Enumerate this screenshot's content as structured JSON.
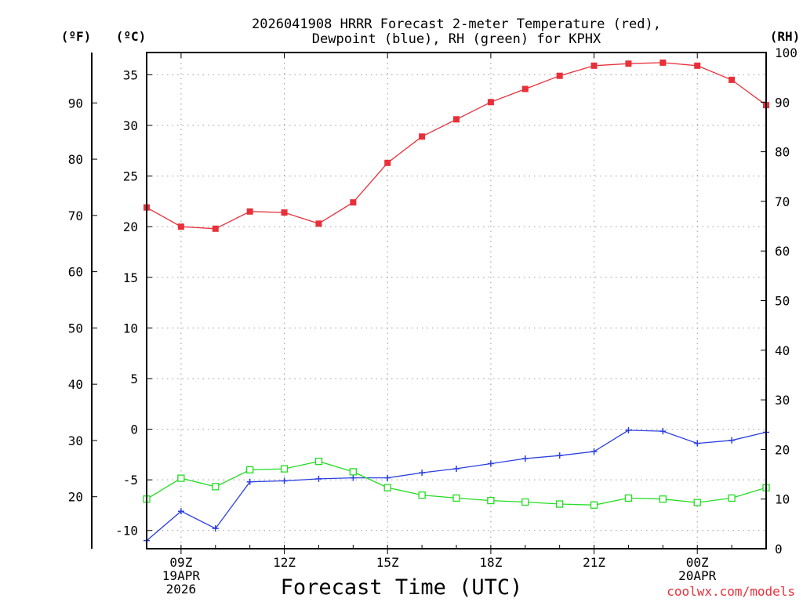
{
  "colors": {
    "temperature": "#e8303a",
    "dewpoint": "#2b3fe0",
    "rh": "#22dd22",
    "grid": "#999999",
    "credit": "#e8303a"
  },
  "chart_data": {
    "type": "line",
    "title": [
      "2026041908 HRRR Forecast 2-meter Temperature (red),",
      "Dewpoint (blue), RH (green) for KPHX"
    ],
    "xlabel": "Forecast Time (UTC)",
    "credit": "coolwx.com/models",
    "unit_labels": {
      "fahrenheit": "(ºF)",
      "celsius": "(ºC)",
      "rh": "(RH)"
    },
    "x_hours_from_08z": [
      0,
      1,
      2,
      3,
      4,
      5,
      6,
      7,
      8,
      9,
      10,
      11,
      12,
      13,
      14,
      15,
      16,
      17,
      18
    ],
    "x_range": [
      0,
      18
    ],
    "x_ticks": [
      {
        "hour": 1,
        "lines": [
          "09Z",
          "19APR",
          "2026"
        ]
      },
      {
        "hour": 4,
        "lines": [
          "12Z"
        ]
      },
      {
        "hour": 7,
        "lines": [
          "15Z"
        ]
      },
      {
        "hour": 10,
        "lines": [
          "18Z"
        ]
      },
      {
        "hour": 13,
        "lines": [
          "21Z"
        ]
      },
      {
        "hour": 16,
        "lines": [
          "00Z",
          "20APR"
        ]
      }
    ],
    "y_celsius_range": [
      -11.8,
      37.2
    ],
    "y_celsius_ticks": [
      35,
      30,
      25,
      20,
      15,
      10,
      5,
      0,
      -5,
      -10
    ],
    "y_fahrenheit_ticks": [
      90,
      80,
      70,
      60,
      50,
      40,
      30,
      20
    ],
    "y_rh_range": [
      0,
      100
    ],
    "y_rh_ticks": [
      100,
      90,
      80,
      70,
      60,
      50,
      40,
      30,
      20,
      10,
      0
    ],
    "series": [
      {
        "name": "Temperature",
        "axis": "celsius",
        "marker": "filled-square",
        "values": [
          21.9,
          20.0,
          19.8,
          21.5,
          21.4,
          20.3,
          22.4,
          26.3,
          28.9,
          30.6,
          32.3,
          33.6,
          34.9,
          35.9,
          36.1,
          36.2,
          35.9,
          34.5,
          32.0
        ]
      },
      {
        "name": "Dewpoint",
        "axis": "celsius",
        "marker": "plus",
        "values": [
          -11.0,
          -8.1,
          -9.8,
          -5.2,
          -5.1,
          -4.9,
          -4.8,
          -4.8,
          -4.3,
          -3.9,
          -3.4,
          -2.9,
          -2.6,
          -2.2,
          -0.1,
          -0.2,
          -1.4,
          -1.1,
          -0.3
        ]
      },
      {
        "name": "RH",
        "axis": "rh",
        "marker": "open-square",
        "values": [
          10.0,
          14.2,
          12.5,
          15.9,
          16.1,
          17.6,
          15.5,
          12.3,
          10.8,
          10.2,
          9.7,
          9.4,
          9.0,
          8.8,
          10.2,
          10.0,
          9.3,
          10.2,
          12.3
        ]
      }
    ]
  }
}
